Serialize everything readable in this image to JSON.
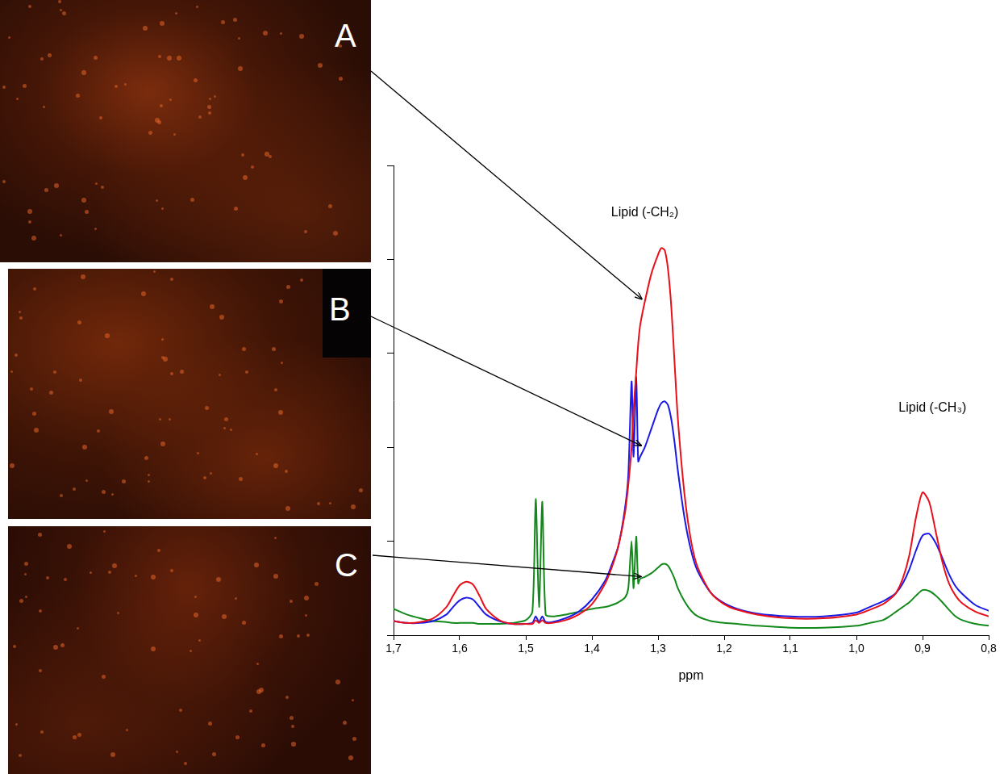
{
  "images": [
    {
      "label": "A"
    },
    {
      "label": "B"
    },
    {
      "label": "C"
    }
  ],
  "chart_data": {
    "type": "line",
    "x": [
      1.7,
      1.68,
      1.66,
      1.64,
      1.62,
      1.61,
      1.6,
      1.59,
      1.58,
      1.57,
      1.56,
      1.54,
      1.52,
      1.5,
      1.49,
      1.485,
      1.48,
      1.475,
      1.47,
      1.46,
      1.44,
      1.42,
      1.4,
      1.38,
      1.37,
      1.36,
      1.35,
      1.345,
      1.34,
      1.337,
      1.333,
      1.33,
      1.327,
      1.32,
      1.31,
      1.3,
      1.295,
      1.29,
      1.285,
      1.28,
      1.275,
      1.27,
      1.26,
      1.25,
      1.24,
      1.22,
      1.2,
      1.18,
      1.15,
      1.1,
      1.05,
      1.0,
      0.98,
      0.96,
      0.95,
      0.94,
      0.93,
      0.92,
      0.91,
      0.9,
      0.89,
      0.88,
      0.87,
      0.86,
      0.85,
      0.84,
      0.82,
      0.8
    ],
    "series": [
      {
        "color": "#e8101a",
        "values": [
          0.15,
          0.13,
          0.14,
          0.18,
          0.3,
          0.42,
          0.53,
          0.57,
          0.54,
          0.42,
          0.28,
          0.16,
          0.12,
          0.12,
          0.12,
          0.16,
          0.13,
          0.16,
          0.13,
          0.13,
          0.16,
          0.22,
          0.33,
          0.55,
          0.72,
          0.95,
          1.3,
          1.6,
          2.0,
          2.4,
          2.8,
          3.1,
          3.3,
          3.55,
          3.85,
          4.05,
          4.12,
          4.1,
          3.9,
          3.5,
          2.9,
          2.3,
          1.5,
          1.0,
          0.72,
          0.45,
          0.33,
          0.27,
          0.22,
          0.18,
          0.18,
          0.22,
          0.27,
          0.33,
          0.38,
          0.45,
          0.6,
          0.85,
          1.25,
          1.52,
          1.42,
          1.1,
          0.78,
          0.55,
          0.42,
          0.34,
          0.25,
          0.2
        ]
      },
      {
        "color": "#1a1ae6",
        "values": [
          0.15,
          0.13,
          0.13,
          0.15,
          0.22,
          0.3,
          0.37,
          0.4,
          0.38,
          0.3,
          0.22,
          0.15,
          0.12,
          0.12,
          0.13,
          0.2,
          0.14,
          0.2,
          0.14,
          0.14,
          0.18,
          0.25,
          0.38,
          0.58,
          0.75,
          0.95,
          1.35,
          1.7,
          2.7,
          1.9,
          2.75,
          1.85,
          1.9,
          2.0,
          2.2,
          2.4,
          2.47,
          2.49,
          2.45,
          2.3,
          2.05,
          1.75,
          1.25,
          0.9,
          0.68,
          0.45,
          0.34,
          0.28,
          0.23,
          0.2,
          0.2,
          0.24,
          0.3,
          0.36,
          0.4,
          0.45,
          0.55,
          0.7,
          0.9,
          1.06,
          1.08,
          0.98,
          0.82,
          0.65,
          0.52,
          0.44,
          0.32,
          0.26
        ]
      },
      {
        "color": "#12891a",
        "values": [
          0.28,
          0.22,
          0.18,
          0.15,
          0.14,
          0.13,
          0.13,
          0.13,
          0.13,
          0.12,
          0.12,
          0.12,
          0.13,
          0.16,
          0.25,
          1.45,
          0.3,
          1.42,
          0.22,
          0.2,
          0.22,
          0.25,
          0.28,
          0.3,
          0.32,
          0.35,
          0.4,
          0.5,
          1.0,
          0.5,
          1.05,
          0.55,
          0.6,
          0.62,
          0.66,
          0.72,
          0.75,
          0.76,
          0.74,
          0.68,
          0.6,
          0.5,
          0.36,
          0.26,
          0.2,
          0.15,
          0.13,
          0.12,
          0.1,
          0.08,
          0.08,
          0.1,
          0.13,
          0.16,
          0.2,
          0.25,
          0.3,
          0.35,
          0.42,
          0.48,
          0.47,
          0.42,
          0.35,
          0.27,
          0.2,
          0.16,
          0.12,
          0.1
        ]
      }
    ],
    "xlim": [
      1.7,
      0.8
    ],
    "xticks": [
      {
        "value": 1.7,
        "label": "1,7"
      },
      {
        "value": 1.6,
        "label": "1,6"
      },
      {
        "value": 1.5,
        "label": "1,5"
      },
      {
        "value": 1.4,
        "label": "1,4"
      },
      {
        "value": 1.3,
        "label": "1,3"
      },
      {
        "value": 1.2,
        "label": "1,2"
      },
      {
        "value": 1.1,
        "label": "1,1"
      },
      {
        "value": 1.0,
        "label": "1,0"
      },
      {
        "value": 0.9,
        "label": "0,9"
      },
      {
        "value": 0.8,
        "label": "0,8"
      }
    ],
    "xlabel": "ppm",
    "ylim": [
      0,
      5
    ],
    "yticks": [
      0,
      1,
      2,
      3,
      4,
      5
    ],
    "tick_labels": "x",
    "grid": false,
    "annotations": [
      {
        "text": "Lipid (-CH₂)",
        "x": 1.32,
        "y": 4.5
      },
      {
        "text": "Lipid (-CH₃)",
        "x": 0.885,
        "y": 2.42
      }
    ]
  }
}
